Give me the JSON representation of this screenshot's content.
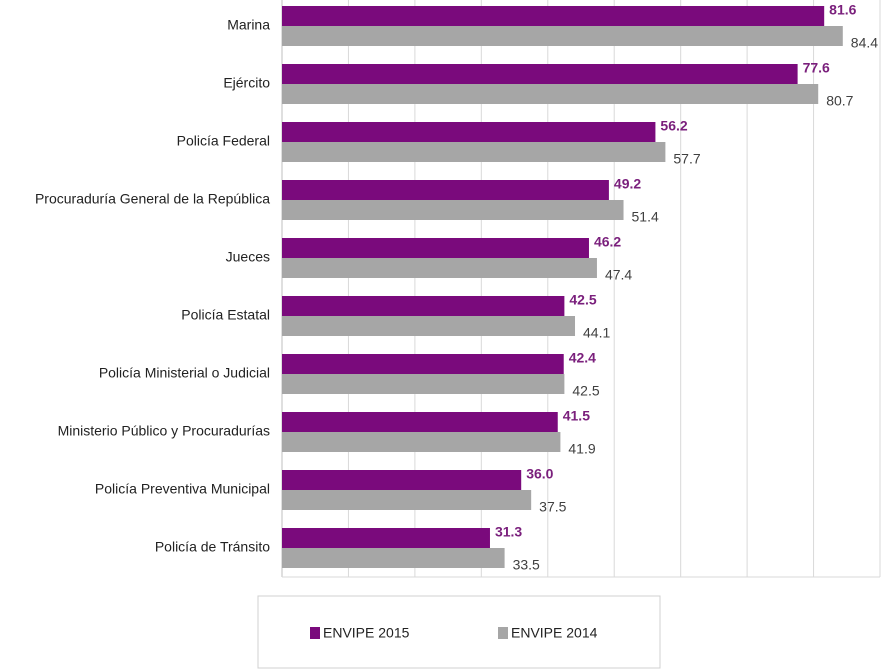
{
  "chart_data": {
    "type": "hbar",
    "categories": [
      "Marina",
      "Ejército",
      "Policía Federal",
      "Procuraduría General de la República",
      "Jueces",
      "Policía Estatal",
      "Policía Ministerial o Judicial",
      "Ministerio Público y Procuradurías",
      "Policía Preventiva Municipal",
      "Policía de Tránsito"
    ],
    "series": [
      {
        "name": "ENVIPE 2015",
        "color": "#7a0a7c",
        "values": [
          81.6,
          77.6,
          56.2,
          49.2,
          46.2,
          42.5,
          42.4,
          41.5,
          36.0,
          31.3
        ],
        "value_labels": [
          "81.6",
          "77.6",
          "56.2",
          "49.2",
          "46.2",
          "42.5",
          "42.4",
          "41.5",
          "36.0",
          "31.3"
        ]
      },
      {
        "name": "ENVIPE 2014",
        "color": "#a6a6a6",
        "values": [
          84.4,
          80.7,
          57.7,
          51.4,
          47.4,
          44.1,
          42.5,
          41.9,
          37.5,
          33.5
        ],
        "value_labels": [
          "84.4",
          "80.7",
          "57.7",
          "51.4",
          "47.4",
          "44.1",
          "42.5",
          "41.9",
          "37.5",
          "33.5"
        ]
      }
    ],
    "xlim": [
      0,
      90
    ],
    "xticks": [
      0,
      10,
      20,
      30,
      40,
      50,
      60,
      70,
      80,
      90
    ],
    "grid": true,
    "legend": "bottom"
  }
}
